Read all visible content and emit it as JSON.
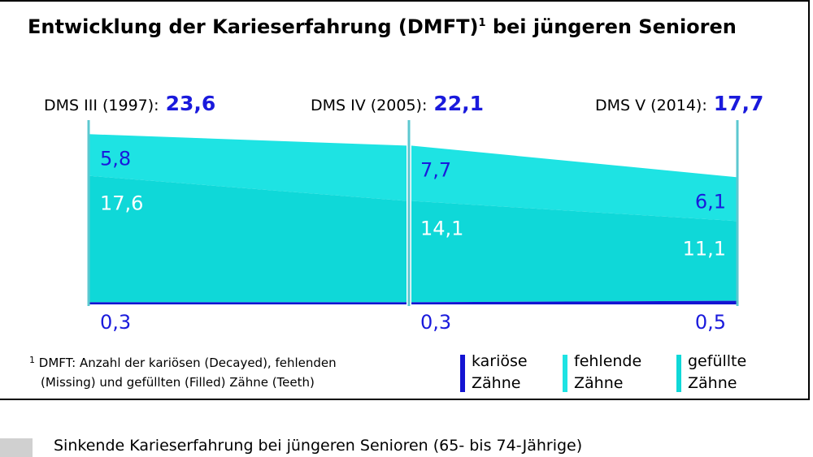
{
  "title": "Entwicklung der Karieserfahrung (DMFT)",
  "title_footnote_mark": "1",
  "title_suffix": " bei jüngeren Senioren",
  "colors": {
    "kariose": "#1414d2",
    "fehlende": "#1ee3e3",
    "gefuellte": "#0fd8d8",
    "divider": "#5cc8d0",
    "value_blue": "#1a1adc",
    "value_white": "#ffffff"
  },
  "waves": [
    {
      "label": "DMS III (1997):",
      "total": "23,6"
    },
    {
      "label": "DMS IV (2005):",
      "total": "22,1"
    },
    {
      "label": "DMS V (2014):",
      "total": "17,7"
    }
  ],
  "chart_data": {
    "type": "area",
    "x": [
      "1997",
      "2005",
      "2014"
    ],
    "series": [
      {
        "name": "kariöse Zähne",
        "values": [
          0.3,
          0.3,
          0.5
        ],
        "labels": [
          "0,3",
          "0,3",
          "0,5"
        ]
      },
      {
        "name": "fehlende Zähne",
        "values": [
          17.6,
          14.1,
          11.1
        ],
        "labels": [
          "17,6",
          "14,1",
          "11,1"
        ]
      },
      {
        "name": "gefüllte Zähne",
        "values": [
          5.8,
          7.7,
          6.1
        ],
        "labels": [
          "5,8",
          "7,7",
          "6,1"
        ]
      }
    ],
    "totals": [
      23.6,
      22.1,
      17.7
    ]
  },
  "footnote": {
    "mark": "1",
    "line1": "DMFT: Anzahl der kariösen (Decayed), fehlenden",
    "line2": "(Missing) und gefüllten (Filled) Zähne (Teeth)"
  },
  "legend": [
    {
      "line1": "kariöse",
      "line2": "Zähne",
      "color": "#1414d2"
    },
    {
      "line1": "fehlende",
      "line2": "Zähne",
      "color": "#1ee3e3"
    },
    {
      "line1": "gefüllte",
      "line2": "Zähne",
      "color": "#0fd8d8"
    }
  ],
  "caption": "Sinkende Karieserfahrung bei jüngeren Senioren (65- bis 74-Jährige)"
}
